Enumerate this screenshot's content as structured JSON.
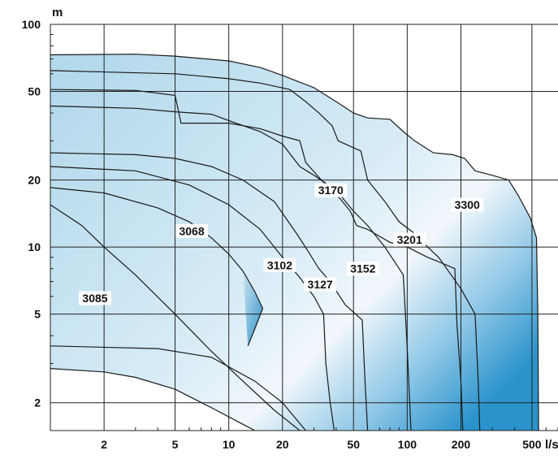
{
  "chart_data": {
    "type": "area",
    "title": "",
    "xlabel": "l/s",
    "ylabel": "m",
    "xscale": "log",
    "yscale": "log",
    "xlim": [
      1,
      700
    ],
    "ylim": [
      1.5,
      100
    ],
    "x_ticks": [
      2,
      5,
      10,
      20,
      50,
      100,
      200,
      500
    ],
    "y_ticks": [
      2,
      5,
      10,
      20,
      50,
      100
    ],
    "grid": true,
    "legend": "none",
    "colors": {
      "region_fill": "#b9deef",
      "region_deep": "#2a93cc",
      "outline": "#1a1a1a",
      "grid": "#222222",
      "label_bg": "#ffffff"
    },
    "series": [
      {
        "name": "3085",
        "label_at": [
          1.78,
          5.9
        ],
        "upper": [
          [
            1,
            15.5
          ],
          [
            1.5,
            12.5
          ],
          [
            2,
            10
          ],
          [
            3,
            7.5
          ],
          [
            5,
            5.0
          ],
          [
            8,
            3.4
          ],
          [
            12,
            2.5
          ],
          [
            18,
            1.85
          ],
          [
            25,
            1.5
          ]
        ],
        "lower": [
          [
            1,
            2.85
          ],
          [
            2,
            2.75
          ],
          [
            3,
            2.6
          ],
          [
            5,
            2.3
          ],
          [
            8,
            1.9
          ],
          [
            12,
            1.6
          ],
          [
            14,
            1.5
          ]
        ]
      },
      {
        "name": "3068",
        "label_at": [
          6.2,
          11.8
        ],
        "upper": [
          [
            1,
            18.5
          ],
          [
            2,
            17.5
          ],
          [
            4,
            15
          ],
          [
            6,
            13
          ],
          [
            8,
            11
          ],
          [
            10,
            9.3
          ],
          [
            12,
            7.8
          ],
          [
            14,
            6.3
          ],
          [
            15.5,
            5.3
          ]
        ],
        "lower": [
          [
            12.8,
            3.6
          ],
          [
            14,
            4.3
          ],
          [
            15.5,
            5.3
          ]
        ]
      },
      {
        "name": "3102",
        "label_at": [
          19.3,
          8.3
        ],
        "upper": [
          [
            1,
            23
          ],
          [
            3,
            22
          ],
          [
            6,
            19
          ],
          [
            10,
            15.5
          ],
          [
            15,
            12
          ],
          [
            20,
            9
          ],
          [
            25,
            7.3
          ],
          [
            30,
            6.0
          ],
          [
            34,
            5.0
          ],
          [
            35,
            3.0
          ],
          [
            37,
            2.0
          ],
          [
            39,
            1.5
          ]
        ],
        "lower": [
          [
            27,
            1.5
          ],
          [
            20,
            2.0
          ],
          [
            14,
            2.5
          ],
          [
            8,
            3.2
          ],
          [
            4,
            3.5
          ],
          [
            1,
            3.6
          ]
        ]
      },
      {
        "name": "3127",
        "label_at": [
          32.5,
          6.8
        ],
        "upper": [
          [
            1,
            26.5
          ],
          [
            3,
            26
          ],
          [
            5,
            25
          ],
          [
            8,
            23
          ],
          [
            12,
            20
          ],
          [
            18,
            16
          ],
          [
            24,
            11.5
          ],
          [
            28,
            9.5
          ],
          [
            32,
            8
          ],
          [
            37,
            7
          ],
          [
            45,
            5.5
          ],
          [
            56,
            4.7
          ],
          [
            58,
            2.5
          ],
          [
            60,
            1.5
          ]
        ]
      },
      {
        "name": "3152",
        "label_at": [
          56.5,
          8.0
        ],
        "upper": [
          [
            1,
            43
          ],
          [
            3,
            42
          ],
          [
            5,
            40.5
          ],
          [
            8,
            39.5
          ],
          [
            10,
            37
          ],
          [
            15,
            33
          ],
          [
            20,
            29
          ],
          [
            25,
            23
          ],
          [
            30,
            21
          ],
          [
            40,
            18
          ],
          [
            50,
            14.5
          ],
          [
            60,
            12.5
          ],
          [
            75,
            10
          ],
          [
            95,
            7.5
          ],
          [
            100,
            3.5
          ],
          [
            105,
            1.5
          ]
        ]
      },
      {
        "name": "3170",
        "label_at": [
          37.3,
          18.0
        ],
        "upper": [
          [
            1,
            51
          ],
          [
            3,
            50.5
          ],
          [
            5,
            48
          ],
          [
            5.4,
            36
          ],
          [
            10,
            36
          ],
          [
            15,
            34
          ],
          [
            20,
            31.5
          ],
          [
            25,
            30
          ],
          [
            27,
            24
          ],
          [
            33,
            20
          ],
          [
            42,
            16.5
          ],
          [
            48,
            14.5
          ],
          [
            52,
            12.5
          ],
          [
            60,
            12
          ],
          [
            80,
            10.5
          ],
          [
            100,
            10
          ],
          [
            130,
            9
          ],
          [
            155,
            8.5
          ],
          [
            185,
            8
          ],
          [
            190,
            4.5
          ],
          [
            200,
            2.5
          ],
          [
            205,
            1.5
          ]
        ]
      },
      {
        "name": "3201",
        "label_at": [
          103,
          10.8
        ],
        "upper": [
          [
            1,
            62
          ],
          [
            5,
            60
          ],
          [
            10,
            57
          ],
          [
            15,
            54.5
          ],
          [
            22,
            51
          ],
          [
            27,
            45
          ],
          [
            32,
            40
          ],
          [
            38,
            35
          ],
          [
            41,
            30
          ],
          [
            55,
            27
          ],
          [
            60,
            20
          ],
          [
            75,
            16
          ],
          [
            90,
            13
          ],
          [
            110,
            11.5
          ],
          [
            130,
            10
          ],
          [
            150,
            9
          ],
          [
            200,
            6.5
          ],
          [
            240,
            5
          ],
          [
            250,
            2.5
          ],
          [
            255,
            1.5
          ]
        ]
      },
      {
        "name": "3300",
        "label_at": [
          217,
          15.5
        ],
        "upper": [
          [
            1,
            73
          ],
          [
            3,
            73.5
          ],
          [
            5,
            72
          ],
          [
            10,
            68.5
          ],
          [
            15,
            64
          ],
          [
            20,
            59
          ],
          [
            25,
            55
          ],
          [
            30,
            52
          ],
          [
            40,
            45
          ],
          [
            50,
            40
          ],
          [
            60,
            38
          ],
          [
            80,
            37.5
          ],
          [
            95,
            33
          ],
          [
            110,
            30
          ],
          [
            140,
            26.5
          ],
          [
            180,
            26
          ],
          [
            210,
            25
          ],
          [
            240,
            22
          ],
          [
            300,
            21
          ],
          [
            370,
            20
          ],
          [
            420,
            17
          ],
          [
            490,
            13.5
          ],
          [
            530,
            11
          ],
          [
            540,
            5
          ],
          [
            545,
            1.5
          ]
        ]
      }
    ]
  }
}
